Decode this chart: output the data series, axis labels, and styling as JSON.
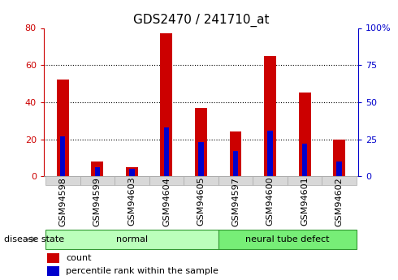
{
  "title": "GDS2470 / 241710_at",
  "categories": [
    "GSM94598",
    "GSM94599",
    "GSM94603",
    "GSM94604",
    "GSM94605",
    "GSM94597",
    "GSM94600",
    "GSM94601",
    "GSM94602"
  ],
  "count_values": [
    52,
    8,
    5,
    77,
    37,
    24,
    65,
    45,
    20
  ],
  "percentile_values": [
    27,
    6,
    5,
    33,
    23,
    17,
    31,
    22,
    10
  ],
  "groups": [
    {
      "label": "normal",
      "span": [
        0,
        4
      ]
    },
    {
      "label": "neural tube defect",
      "span": [
        5,
        8
      ]
    }
  ],
  "bar_color": "#cc0000",
  "percentile_color": "#0000cc",
  "left_ylim": [
    0,
    80
  ],
  "right_ylim": [
    0,
    100
  ],
  "left_yticks": [
    0,
    20,
    40,
    60,
    80
  ],
  "right_yticks": [
    0,
    25,
    50,
    75,
    100
  ],
  "right_yticklabels": [
    "0",
    "25",
    "50",
    "75",
    "100%"
  ],
  "left_axis_color": "#cc0000",
  "right_axis_color": "#0000cc",
  "grid_color": "#000000",
  "title_fontsize": 11,
  "tick_fontsize": 8,
  "label_fontsize": 8,
  "xticklabel_bg": "#d8d8d8",
  "normal_color": "#bbffbb",
  "disease_color": "#77ee77",
  "group_border_color": "#339933",
  "bar_width": 0.35,
  "pct_bar_width": 0.15,
  "disease_state_label": "disease state",
  "legend_count": "count",
  "legend_percentile": "percentile rank within the sample"
}
